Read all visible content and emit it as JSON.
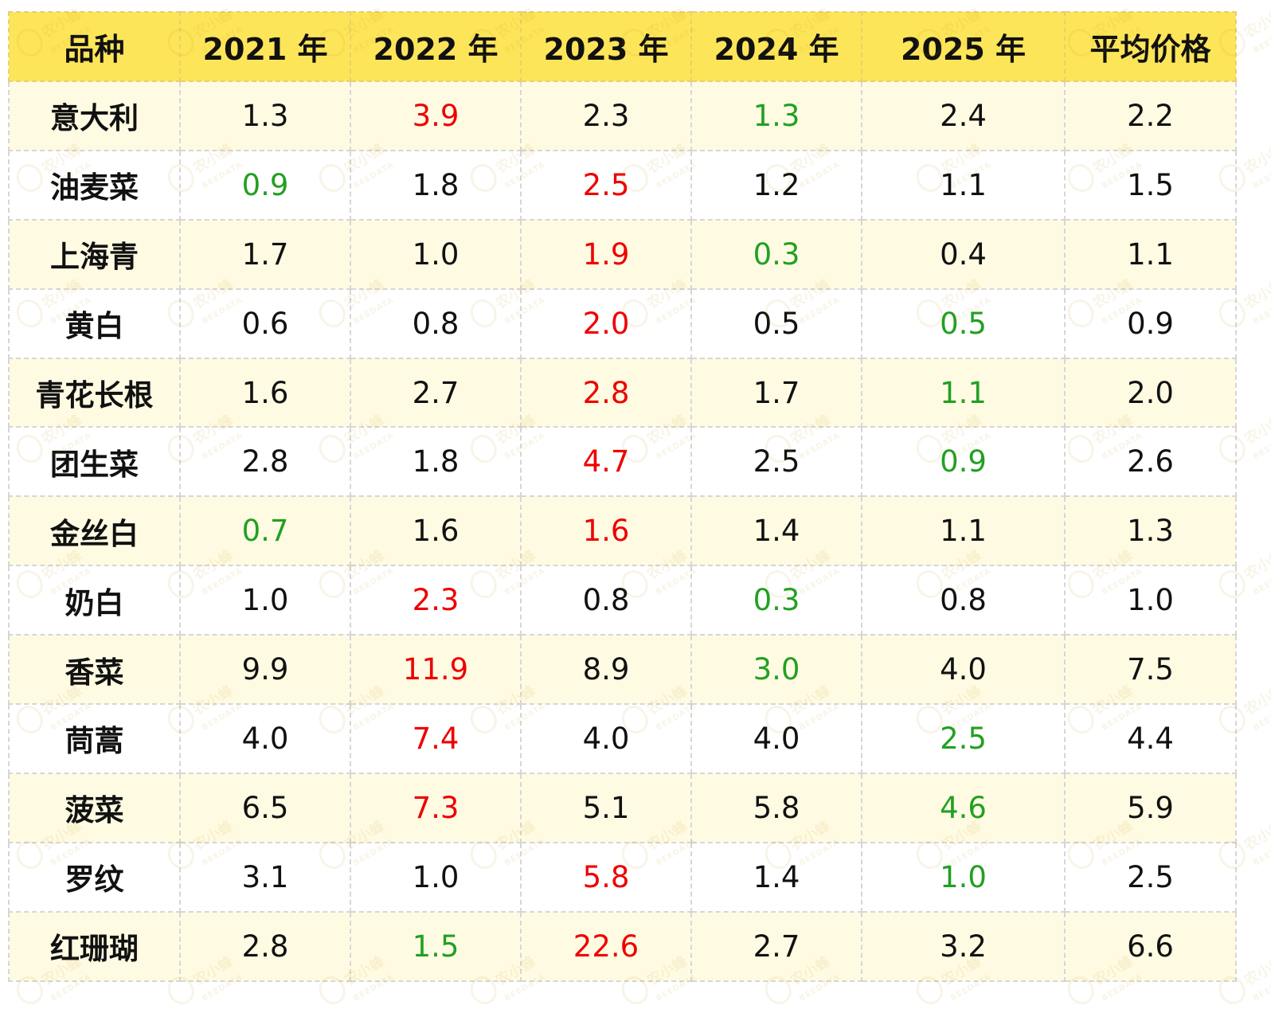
{
  "colors": {
    "header_bg": "#fde55a",
    "odd_row_bg": "#fffbe3",
    "max": "#ee0000",
    "min": "#22a022"
  },
  "watermark": {
    "cn": "农小蜂",
    "en": "BEEDATA"
  },
  "chart_data": {
    "type": "table",
    "columns": [
      "品种",
      "2021 年",
      "2022 年",
      "2023 年",
      "2024 年",
      "2025 年",
      "平均价格"
    ],
    "rows": [
      {
        "name": "意大利",
        "values": [
          "1.3",
          "3.9",
          "2.3",
          "1.3",
          "2.4",
          "2.2"
        ],
        "colors": [
          "",
          "red",
          "",
          "green",
          "",
          ""
        ]
      },
      {
        "name": "油麦菜",
        "values": [
          "0.9",
          "1.8",
          "2.5",
          "1.2",
          "1.1",
          "1.5"
        ],
        "colors": [
          "green",
          "",
          "red",
          "",
          "",
          ""
        ]
      },
      {
        "name": "上海青",
        "values": [
          "1.7",
          "1.0",
          "1.9",
          "0.3",
          "0.4",
          "1.1"
        ],
        "colors": [
          "",
          "",
          "red",
          "green",
          "",
          ""
        ]
      },
      {
        "name": "黄白",
        "values": [
          "0.6",
          "0.8",
          "2.0",
          "0.5",
          "0.5",
          "0.9"
        ],
        "colors": [
          "",
          "",
          "red",
          "",
          "green",
          ""
        ]
      },
      {
        "name": "青花长根",
        "values": [
          "1.6",
          "2.7",
          "2.8",
          "1.7",
          "1.1",
          "2.0"
        ],
        "colors": [
          "",
          "",
          "red",
          "",
          "green",
          ""
        ]
      },
      {
        "name": "团生菜",
        "values": [
          "2.8",
          "1.8",
          "4.7",
          "2.5",
          "0.9",
          "2.6"
        ],
        "colors": [
          "",
          "",
          "red",
          "",
          "green",
          ""
        ]
      },
      {
        "name": "金丝白",
        "values": [
          "0.7",
          "1.6",
          "1.6",
          "1.4",
          "1.1",
          "1.3"
        ],
        "colors": [
          "green",
          "",
          "red",
          "",
          "",
          ""
        ]
      },
      {
        "name": "奶白",
        "values": [
          "1.0",
          "2.3",
          "0.8",
          "0.3",
          "0.8",
          "1.0"
        ],
        "colors": [
          "",
          "red",
          "",
          "green",
          "",
          ""
        ]
      },
      {
        "name": "香菜",
        "values": [
          "9.9",
          "11.9",
          "8.9",
          "3.0",
          "4.0",
          "7.5"
        ],
        "colors": [
          "",
          "red",
          "",
          "green",
          "",
          ""
        ]
      },
      {
        "name": "茼蒿",
        "values": [
          "4.0",
          "7.4",
          "4.0",
          "4.0",
          "2.5",
          "4.4"
        ],
        "colors": [
          "",
          "red",
          "",
          "",
          "green",
          ""
        ]
      },
      {
        "name": "菠菜",
        "values": [
          "6.5",
          "7.3",
          "5.1",
          "5.8",
          "4.6",
          "5.9"
        ],
        "colors": [
          "",
          "red",
          "",
          "",
          "green",
          ""
        ]
      },
      {
        "name": "罗纹",
        "values": [
          "3.1",
          "1.0",
          "5.8",
          "1.4",
          "1.0",
          "2.5"
        ],
        "colors": [
          "",
          "",
          "red",
          "",
          "green",
          ""
        ]
      },
      {
        "name": "红珊瑚",
        "values": [
          "2.8",
          "1.5",
          "22.6",
          "2.7",
          "3.2",
          "6.6"
        ],
        "colors": [
          "",
          "green",
          "red",
          "",
          "",
          ""
        ]
      }
    ]
  }
}
